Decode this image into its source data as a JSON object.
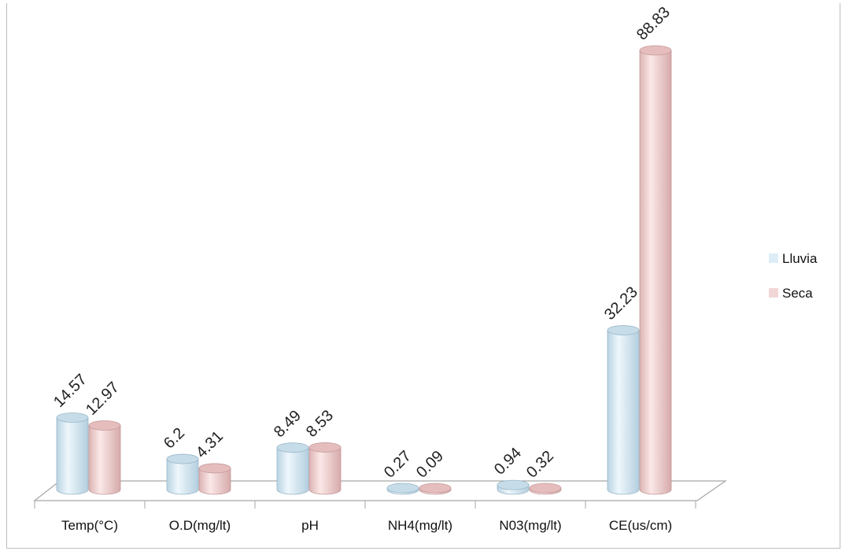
{
  "chart_data": {
    "type": "bar",
    "categories": [
      "Temp(°C)",
      "O.D(mg/lt)",
      "pH",
      "NH4(mg/lt)",
      "N03(mg/lt)",
      "CE(us/cm)"
    ],
    "series": [
      {
        "name": "Lluvia",
        "values": [
          14.57,
          6.2,
          8.49,
          0.27,
          0.94,
          32.23
        ],
        "labels": [
          "14.57",
          "6.2",
          "8.49",
          "0.27",
          "0.94",
          "32.23"
        ],
        "color": "#dcedf7"
      },
      {
        "name": "Seca",
        "values": [
          12.97,
          4.31,
          8.53,
          0.09,
          0.32,
          88.83
        ],
        "labels": [
          "12.97",
          "4.31",
          "8.53",
          "0.09",
          "0.32",
          "88.83"
        ],
        "color": "#f2d6d6"
      }
    ],
    "ylim": [
      0,
      88.83
    ],
    "legend": "right",
    "grid": false
  }
}
